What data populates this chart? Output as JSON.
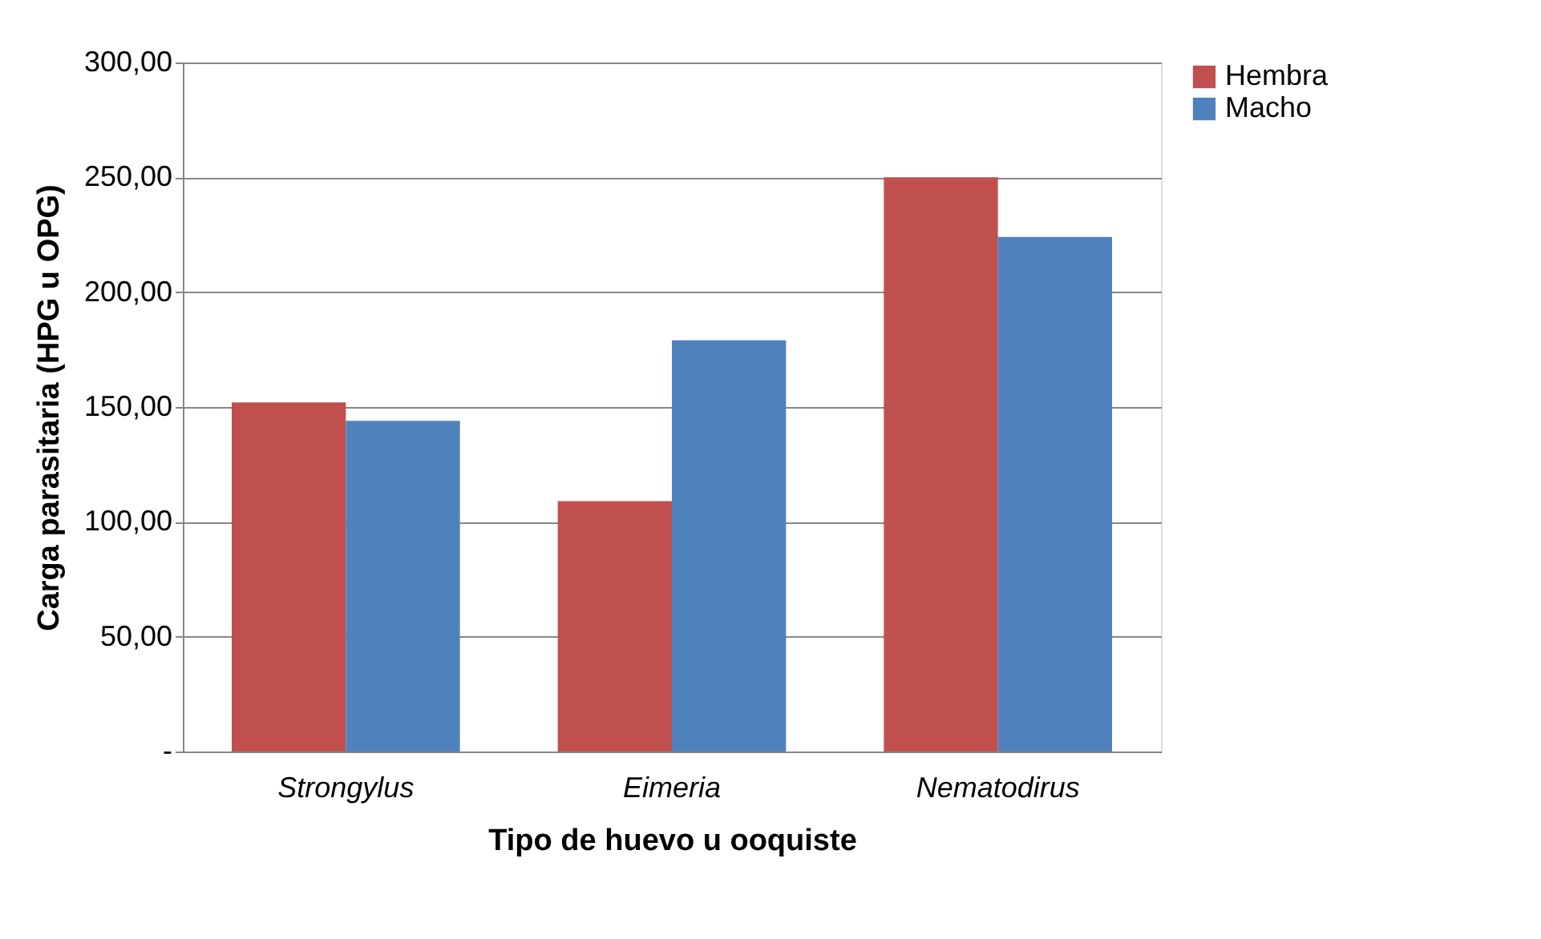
{
  "chart_data": {
    "type": "bar",
    "xlabel": "Tipo de huevo u ooquiste",
    "ylabel": "Carga parasitaria (HPG u  OPG)",
    "categories": [
      "Strongylus",
      "Eimeria",
      "Nematodirus"
    ],
    "series": [
      {
        "name": "Hembra",
        "color": "#c0504d",
        "values": [
          152,
          109,
          250
        ]
      },
      {
        "name": "Macho",
        "color": "#4f81bd",
        "values": [
          144,
          179,
          224
        ]
      }
    ],
    "ylim": [
      0,
      300
    ],
    "yticks": [
      {
        "value": 0,
        "label": "-"
      },
      {
        "value": 50,
        "label": "50,00"
      },
      {
        "value": 100,
        "label": "100,00"
      },
      {
        "value": 150,
        "label": "150,00"
      },
      {
        "value": 200,
        "label": "200,00"
      },
      {
        "value": 250,
        "label": "250,00"
      },
      {
        "value": 300,
        "label": "300,00"
      }
    ],
    "grid": "y",
    "legend": "right"
  }
}
